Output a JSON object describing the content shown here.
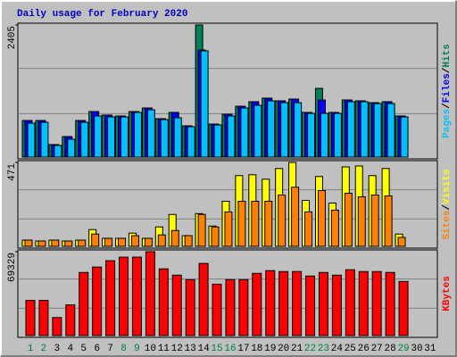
{
  "chart_data": {
    "type": "bar",
    "title": "Daily usage for February 2020",
    "title_color": "#0000C0",
    "categories": [
      "1",
      "2",
      "3",
      "4",
      "5",
      "6",
      "7",
      "8",
      "9",
      "10",
      "11",
      "12",
      "13",
      "14",
      "15",
      "16",
      "17",
      "18",
      "19",
      "20",
      "21",
      "22",
      "23",
      "24",
      "25",
      "26",
      "27",
      "28",
      "29",
      "30",
      "31"
    ],
    "category_colors": [
      "#008040",
      "#008040",
      "#000000",
      "#000000",
      "#000000",
      "#000000",
      "#000000",
      "#008040",
      "#008040",
      "#000000",
      "#000000",
      "#000000",
      "#000000",
      "#000000",
      "#008040",
      "#008040",
      "#000000",
      "#000000",
      "#000000",
      "#000000",
      "#000000",
      "#008040",
      "#008040",
      "#000000",
      "#000000",
      "#000000",
      "#000000",
      "#000000",
      "#008040",
      "#000000",
      "#000000"
    ],
    "legend_separator": "/",
    "grid": true,
    "panels": [
      {
        "ylim": [
          0,
          2405
        ],
        "yticks": [
          2405
        ],
        "series": [
          {
            "name": "Hits",
            "color": "#00805C",
            "values": [
              666,
              666,
              228,
              374,
              666,
              829,
              764,
              748,
              829,
              894,
              699,
              813,
              569,
              2405,
              601,
              780,
              926,
              1008,
              1073,
              1024,
              1056,
              813,
              1251,
              813,
              1040,
              1024,
              991,
              1008,
              748,
              null,
              null
            ]
          },
          {
            "name": "Files",
            "color": "#0000FF",
            "values": [
              666,
              666,
              228,
              374,
              666,
              829,
              764,
              748,
              829,
              894,
              699,
              813,
              569,
              1950,
              601,
              780,
              926,
              1008,
              1073,
              1024,
              1056,
              813,
              1040,
              813,
              1040,
              1024,
              991,
              1008,
              748,
              null,
              null
            ]
          },
          {
            "name": "Pages",
            "color": "#00C0FF",
            "values": [
              618,
              634,
              211,
              325,
              634,
              748,
              731,
              731,
              813,
              861,
              683,
              715,
              553,
              1934,
              585,
              748,
              894,
              943,
              1024,
              991,
              991,
              796,
              796,
              796,
              1008,
              1008,
              975,
              975,
              731,
              null,
              null
            ]
          }
        ]
      },
      {
        "ylim": [
          0,
          471
        ],
        "yticks": [
          471
        ],
        "series": [
          {
            "name": "Visits",
            "color": "#FFFF00",
            "values": [
              35,
              30,
              35,
              30,
              35,
              94,
              45,
              45,
              74,
              45,
              109,
              179,
              60,
              184,
              114,
              253,
              397,
              402,
              377,
              437,
              471,
              258,
              392,
              243,
              446,
              451,
              397,
              437,
              69,
              null,
              null
            ]
          },
          {
            "name": "Sites",
            "color": "#FF8000",
            "values": [
              35,
              30,
              35,
              30,
              35,
              69,
              45,
              45,
              60,
              45,
              64,
              89,
              60,
              179,
              109,
              193,
              253,
              253,
              253,
              288,
              332,
              193,
              313,
              203,
              298,
              278,
              288,
              283,
              50,
              null,
              null
            ]
          }
        ]
      },
      {
        "ylim": [
          0,
          69329
        ],
        "yticks": [
          69329
        ],
        "series": [
          {
            "name": "KBytes",
            "color": "#FF0000",
            "values": [
              29070,
              29070,
              14900,
              25340,
              52170,
              56640,
              61860,
              64840,
              64840,
              69329,
              55150,
              49940,
              46210,
              59630,
              42480,
              46210,
              46210,
              51430,
              53660,
              52920,
              52920,
              49190,
              52170,
              49940,
              54410,
              52920,
              52920,
              52170,
              44720,
              null,
              null
            ]
          }
        ]
      }
    ]
  }
}
